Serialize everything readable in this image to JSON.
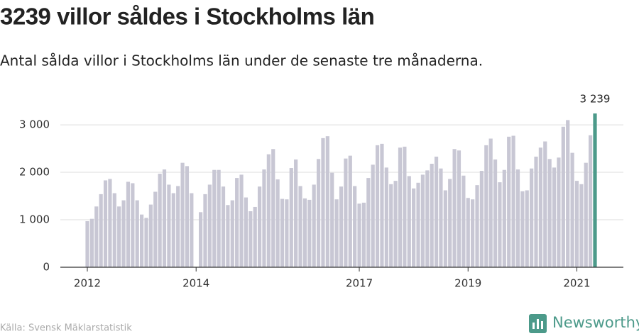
{
  "chart_data": {
    "type": "bar",
    "title": "3239 villor såldes i Stockholms län",
    "subtitle": "Antal sålda villor i Stockholms län under de senaste tre månaderna.",
    "source": "Källa: Svensk Mäklarstatistik",
    "brand": "Newsworthy",
    "color": "#c8c7d4",
    "highlight_color": "#4c9a8a",
    "ylim": [
      0,
      3300
    ],
    "yticks": [
      0,
      {
        "value": 1000,
        "label": "1 000"
      },
      {
        "value": 2000,
        "label": "2 000"
      },
      {
        "value": 3000,
        "label": "3 000"
      }
    ],
    "grid": true,
    "categories": [
      "2012",
      null,
      null,
      null,
      null,
      null,
      null,
      null,
      null,
      null,
      null,
      null,
      null,
      null,
      null,
      null,
      null,
      null,
      null,
      null,
      null,
      null,
      null,
      null,
      "2014",
      null,
      null,
      null,
      null,
      null,
      null,
      null,
      null,
      null,
      null,
      null,
      null,
      null,
      null,
      null,
      null,
      null,
      null,
      null,
      null,
      null,
      null,
      null,
      null,
      null,
      null,
      null,
      null,
      null,
      null,
      null,
      null,
      null,
      null,
      null,
      "2017",
      null,
      null,
      null,
      null,
      null,
      null,
      null,
      null,
      null,
      null,
      null,
      null,
      null,
      null,
      null,
      null,
      null,
      null,
      null,
      null,
      null,
      null,
      null,
      "2019",
      null,
      null,
      null,
      null,
      null,
      null,
      null,
      null,
      null,
      null,
      null,
      null,
      null,
      null,
      null,
      null,
      null,
      null,
      null,
      null,
      null,
      null,
      null,
      "2021",
      null,
      null,
      null,
      null
    ],
    "values": [
      970,
      1020,
      1280,
      1540,
      1830,
      1860,
      1560,
      1280,
      1410,
      1800,
      1770,
      1410,
      1110,
      1040,
      1320,
      1590,
      1970,
      2060,
      1740,
      1560,
      1710,
      2200,
      2130,
      1560,
      null,
      1160,
      1540,
      1740,
      2050,
      2050,
      1700,
      1310,
      1410,
      1880,
      1950,
      1470,
      1180,
      1270,
      1700,
      2060,
      2380,
      2490,
      1850,
      1440,
      1430,
      2090,
      2270,
      1710,
      1450,
      1420,
      1740,
      2280,
      2720,
      2760,
      1990,
      1430,
      1700,
      2290,
      2350,
      1710,
      1340,
      1360,
      1880,
      2160,
      2570,
      2600,
      2100,
      1750,
      1820,
      2520,
      2540,
      1920,
      1660,
      1780,
      1950,
      2040,
      2180,
      2330,
      2080,
      1620,
      1860,
      2490,
      2460,
      1930,
      1460,
      1430,
      1730,
      2030,
      2570,
      2710,
      2270,
      1790,
      2050,
      2750,
      2770,
      2060,
      1600,
      1620,
      2080,
      2330,
      2520,
      2650,
      2280,
      2100,
      2310,
      2960,
      3100,
      2410,
      1820,
      1750,
      2200,
      2780,
      3239
    ],
    "value_labels": [
      null,
      null,
      null,
      null,
      null,
      null,
      null,
      null,
      null,
      null,
      null,
      null,
      null,
      null,
      null,
      null,
      null,
      null,
      null,
      null,
      null,
      null,
      null,
      null,
      null,
      null,
      null,
      null,
      null,
      null,
      null,
      null,
      null,
      null,
      null,
      null,
      null,
      null,
      null,
      null,
      null,
      null,
      null,
      null,
      null,
      null,
      null,
      null,
      null,
      null,
      null,
      null,
      null,
      null,
      null,
      null,
      null,
      null,
      null,
      null,
      null,
      null,
      null,
      null,
      null,
      null,
      null,
      null,
      null,
      null,
      null,
      null,
      null,
      null,
      null,
      null,
      null,
      null,
      null,
      null,
      null,
      null,
      null,
      null,
      null,
      null,
      null,
      null,
      null,
      null,
      null,
      null,
      null,
      null,
      null,
      null,
      null,
      null,
      null,
      null,
      null,
      null,
      null,
      null,
      null,
      null,
      null,
      null,
      null,
      null,
      null,
      null,
      "3 239"
    ]
  }
}
